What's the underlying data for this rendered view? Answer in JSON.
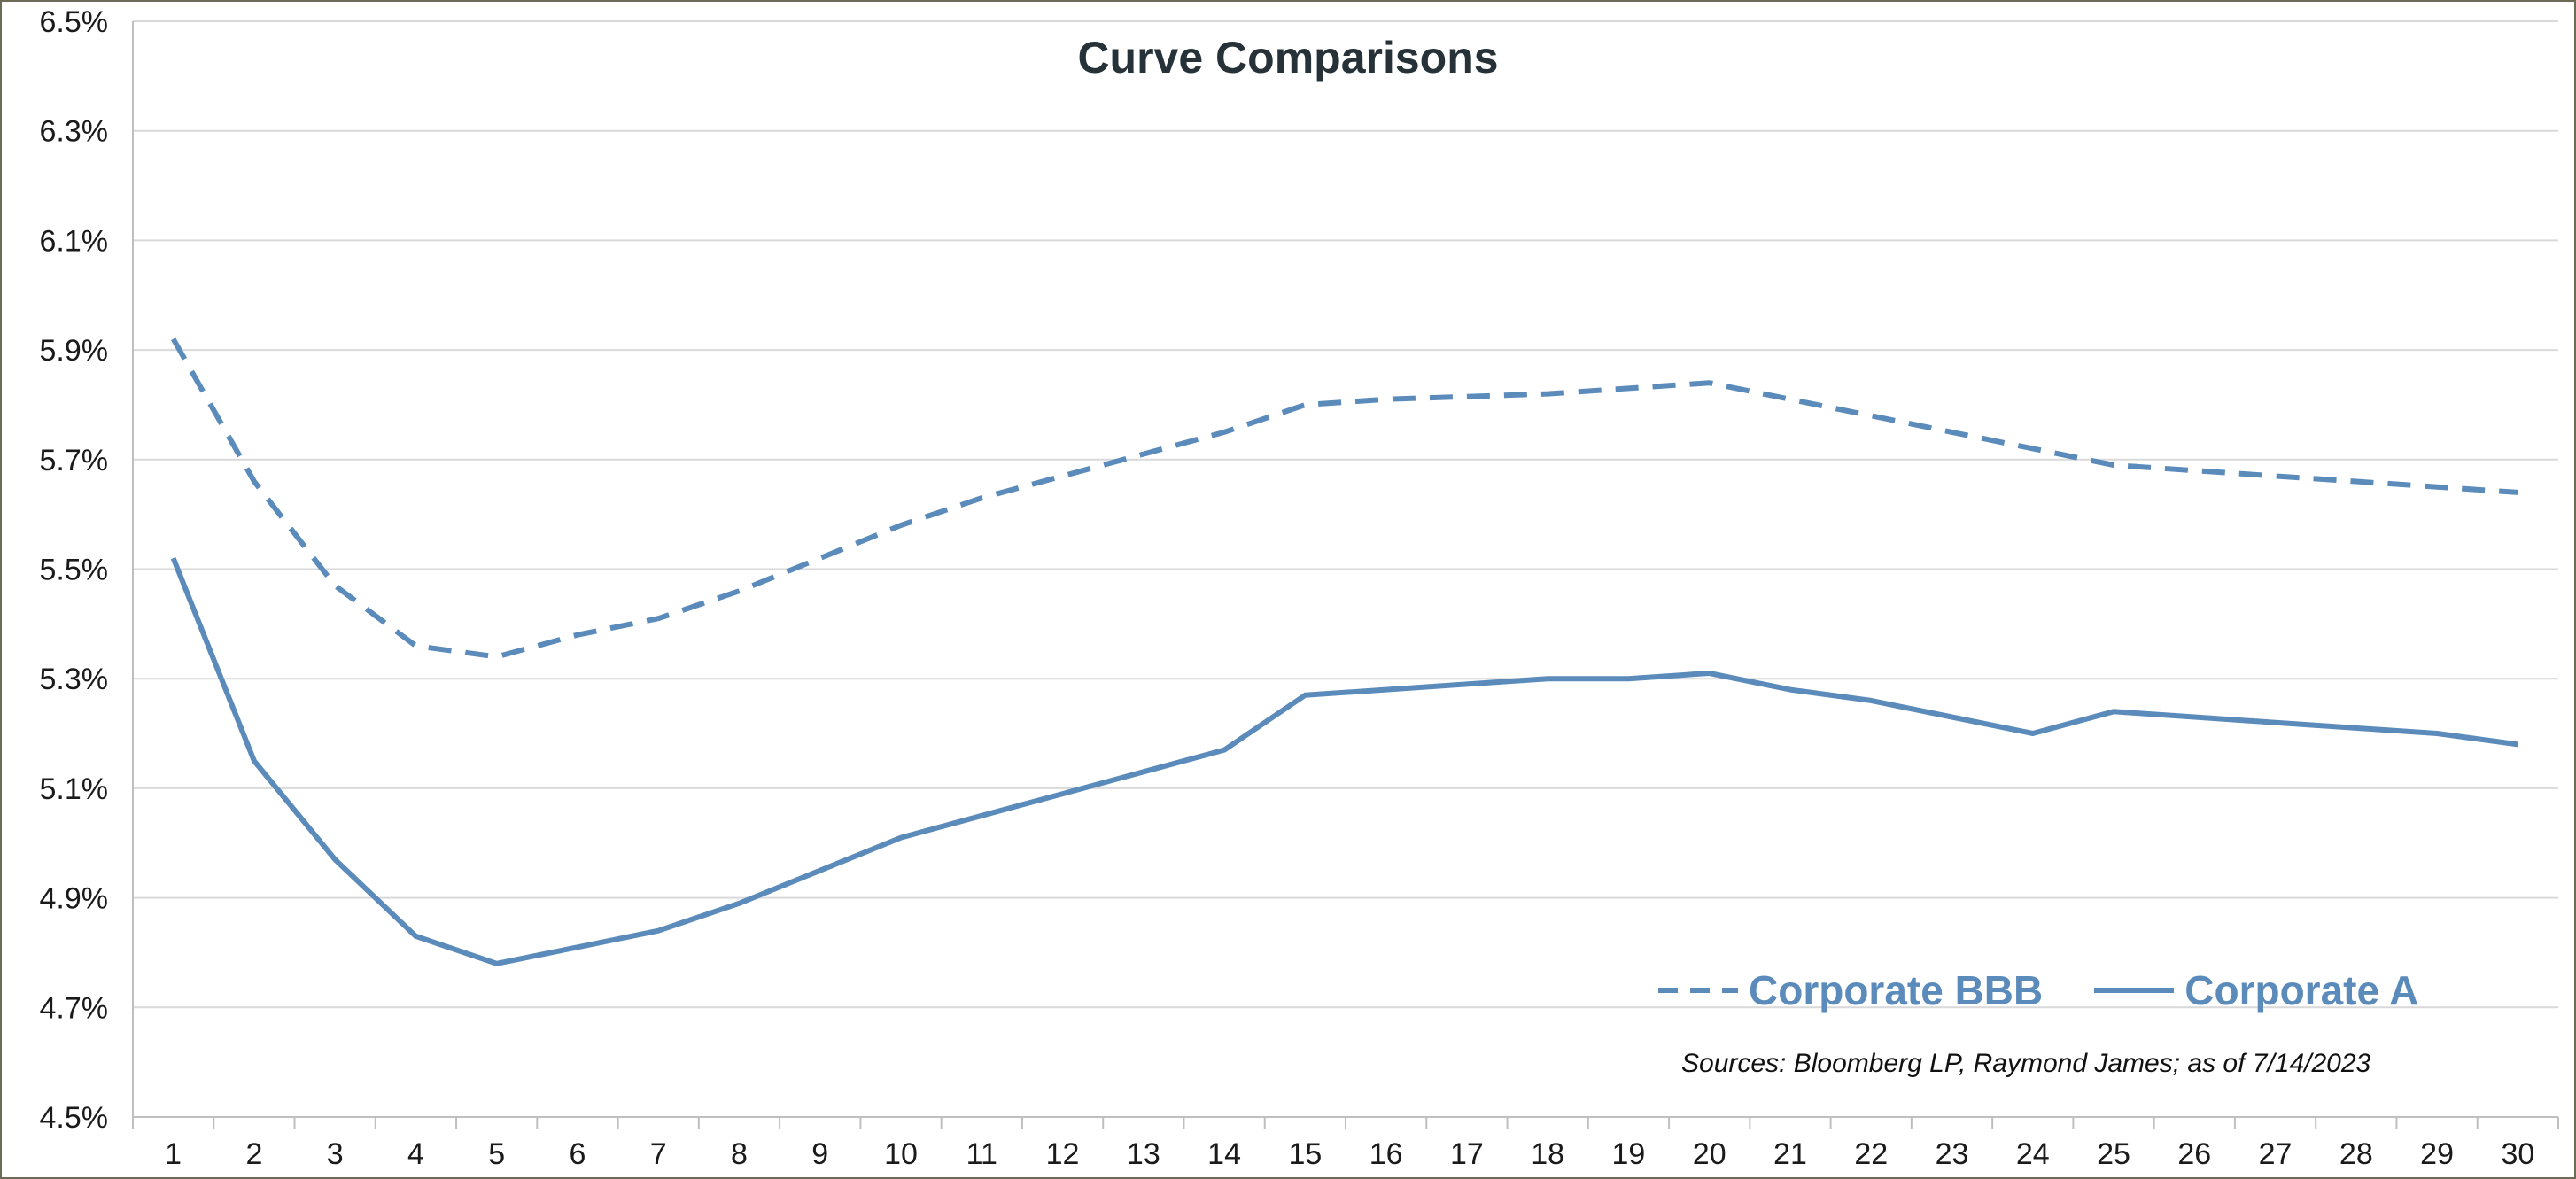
{
  "chart_data": {
    "type": "line",
    "title": "Curve Comparisons",
    "xlabel": "",
    "ylabel": "",
    "categories": [
      "1",
      "2",
      "3",
      "4",
      "5",
      "6",
      "7",
      "8",
      "9",
      "10",
      "11",
      "12",
      "13",
      "14",
      "15",
      "16",
      "17",
      "18",
      "19",
      "20",
      "21",
      "22",
      "23",
      "24",
      "25",
      "26",
      "27",
      "28",
      "29",
      "30"
    ],
    "ylim": [
      4.5,
      6.5
    ],
    "yticks": [
      4.5,
      4.7,
      4.9,
      5.1,
      5.3,
      5.5,
      5.7,
      5.9,
      6.1,
      6.3,
      6.5
    ],
    "ytick_labels": [
      "4.5%",
      "4.7%",
      "4.9%",
      "5.1%",
      "5.3%",
      "5.5%",
      "5.7%",
      "5.9%",
      "6.1%",
      "6.3%",
      "6.5%"
    ],
    "grid": "horizontal",
    "legend_position": "bottom-right",
    "series": [
      {
        "name": "Corporate BBB",
        "style": "dashed",
        "color": "#5b8bba",
        "values": [
          5.92,
          5.66,
          5.47,
          5.36,
          5.34,
          5.38,
          5.41,
          5.46,
          5.52,
          5.58,
          5.63,
          5.67,
          5.71,
          5.75,
          5.8,
          5.81,
          5.815,
          5.82,
          5.83,
          5.84,
          5.81,
          5.78,
          5.75,
          5.72,
          5.69,
          5.68,
          5.67,
          5.66,
          5.65,
          5.64
        ]
      },
      {
        "name": "Corporate A",
        "style": "solid",
        "color": "#5b8bba",
        "values": [
          5.52,
          5.15,
          4.97,
          4.83,
          4.78,
          4.81,
          4.84,
          4.89,
          4.95,
          5.01,
          5.05,
          5.09,
          5.13,
          5.17,
          5.27,
          5.28,
          5.29,
          5.3,
          5.3,
          5.31,
          5.28,
          5.26,
          5.23,
          5.2,
          5.24,
          5.23,
          5.22,
          5.21,
          5.2,
          5.18
        ]
      }
    ],
    "annotation": "Sources: Bloomberg LP, Raymond James; as of  7/14/2023"
  }
}
